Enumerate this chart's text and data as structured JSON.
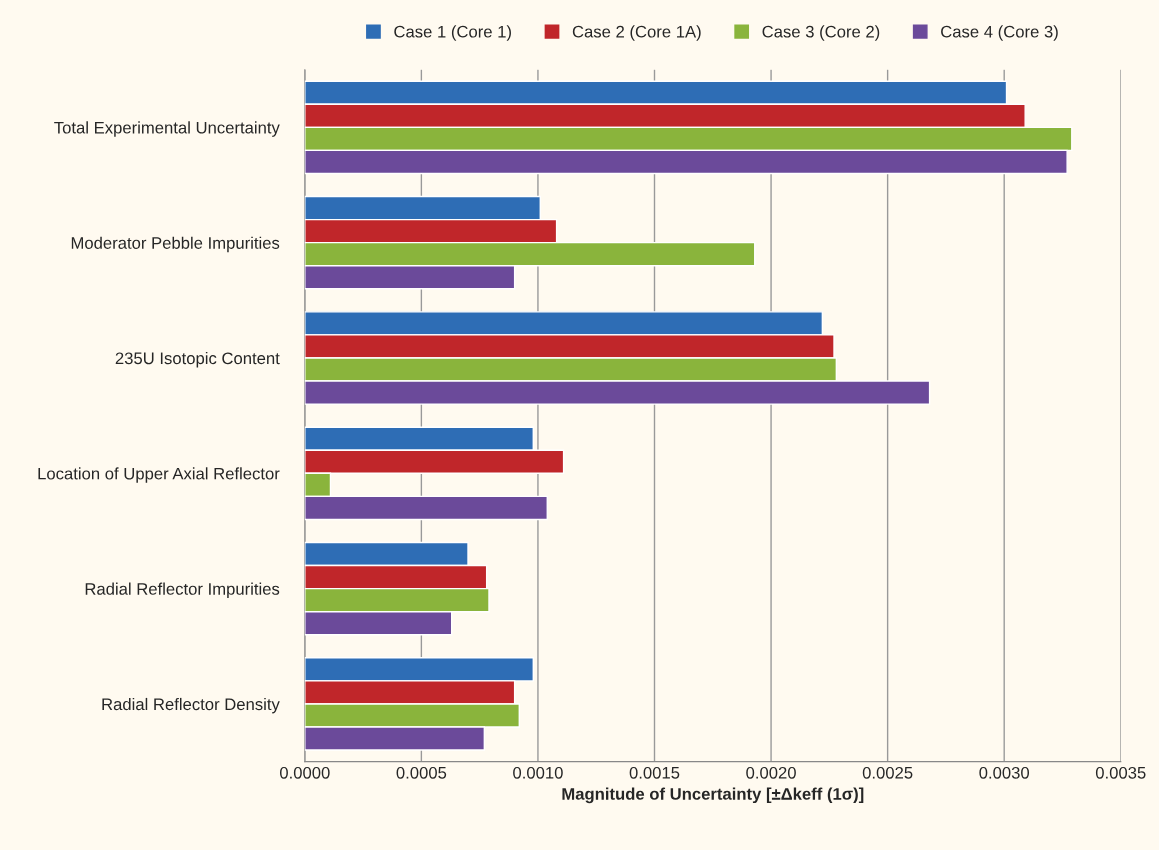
{
  "chart_data": {
    "type": "bar",
    "orientation": "horizontal",
    "xlabel": "Magnitude of Uncertainty [±Δkeff (1σ)]",
    "categories": [
      "Total Experimental Uncertainty",
      "Moderator Pebble Impurities",
      "235U Isotopic Content",
      "Location of Upper Axial Reflector",
      "Radial Reflector Impurities",
      "Radial Reflector Density"
    ],
    "series": [
      {
        "name": "Case 1 (Core 1)",
        "color": "#2e6db5",
        "values": [
          0.00301,
          0.00101,
          0.00222,
          0.00098,
          0.0007,
          0.00098
        ]
      },
      {
        "name": "Case 2 (Core 1A)",
        "color": "#c0262a",
        "values": [
          0.00309,
          0.00108,
          0.00227,
          0.00111,
          0.00078,
          0.0009
        ]
      },
      {
        "name": "Case 3 (Core 2)",
        "color": "#8ab43c",
        "values": [
          0.00329,
          0.00193,
          0.00228,
          0.00011,
          0.00079,
          0.00092
        ]
      },
      {
        "name": "Case 4 (Core 3)",
        "color": "#6b4a9a",
        "values": [
          0.00327,
          0.0009,
          0.00268,
          0.00104,
          0.00063,
          0.00077
        ]
      }
    ],
    "xlim": [
      0,
      0.0035
    ],
    "xticks": [
      {
        "value": 0,
        "label": "0.0000"
      },
      {
        "value": 0.0005,
        "label": "0.0005"
      },
      {
        "value": 0.001,
        "label": "0.0010"
      },
      {
        "value": 0.0015,
        "label": "0.0015"
      },
      {
        "value": 0.002,
        "label": "0.0020"
      },
      {
        "value": 0.0025,
        "label": "0.0025"
      },
      {
        "value": 0.003,
        "label": "0.0030"
      },
      {
        "value": 0.0035,
        "label": "0.0035"
      }
    ],
    "grid": "x",
    "legend": "top"
  }
}
